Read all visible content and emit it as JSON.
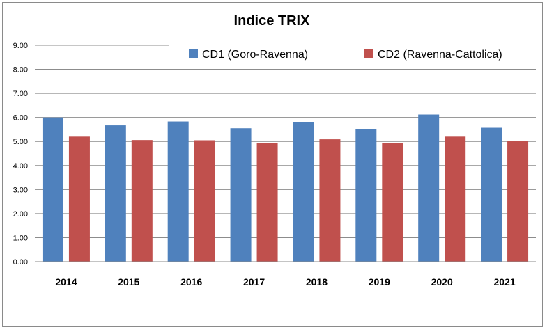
{
  "chart_data": {
    "type": "bar",
    "title": "Indice TRIX",
    "categories": [
      "2014",
      "2015",
      "2016",
      "2017",
      "2018",
      "2019",
      "2020",
      "2021"
    ],
    "series": [
      {
        "name": "CD1 (Goro-Ravenna)",
        "color": "#4f81bd",
        "values": [
          6.0,
          5.67,
          5.83,
          5.55,
          5.8,
          5.5,
          6.12,
          5.57
        ]
      },
      {
        "name": "CD2 (Ravenna-Cattolica)",
        "color": "#c0504d",
        "values": [
          5.2,
          5.06,
          5.05,
          4.92,
          5.09,
          4.92,
          5.2,
          5.02
        ]
      }
    ],
    "y_ticks": [
      "0.00",
      "1.00",
      "2.00",
      "3.00",
      "4.00",
      "5.00",
      "6.00",
      "7.00",
      "8.00",
      "9.00"
    ],
    "ylim": [
      0,
      9
    ],
    "grid": true,
    "legend_position": "top-right"
  }
}
